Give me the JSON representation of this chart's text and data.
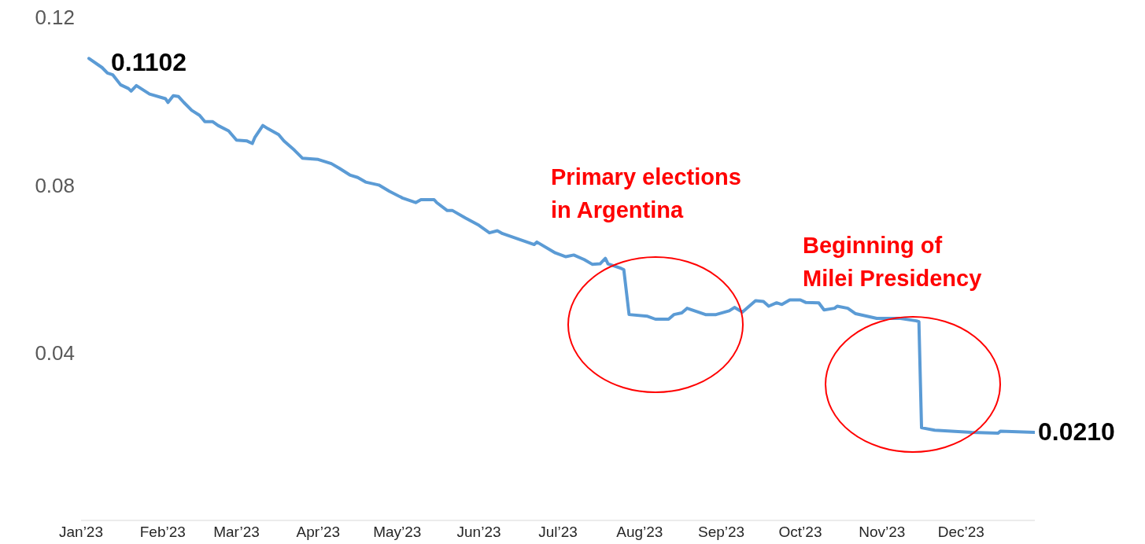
{
  "chart_data": {
    "type": "line",
    "x": [
      "2023-01-04",
      "2023-01-09",
      "2023-01-11",
      "2023-01-13",
      "2023-01-16",
      "2023-01-19",
      "2023-01-20",
      "2023-01-22",
      "2023-01-27",
      "2023-02-02",
      "2023-02-03",
      "2023-02-05",
      "2023-02-07",
      "2023-02-09",
      "2023-02-12",
      "2023-02-15",
      "2023-02-17",
      "2023-02-20",
      "2023-02-22",
      "2023-02-26",
      "2023-03-01",
      "2023-03-05",
      "2023-03-07",
      "2023-03-08",
      "2023-03-11",
      "2023-03-13",
      "2023-03-17",
      "2023-03-19",
      "2023-03-23",
      "2023-03-26",
      "2023-04-01",
      "2023-04-06",
      "2023-04-09",
      "2023-04-13",
      "2023-04-16",
      "2023-04-19",
      "2023-04-24",
      "2023-04-28",
      "2023-05-03",
      "2023-05-08",
      "2023-05-10",
      "2023-05-15",
      "2023-05-16",
      "2023-05-20",
      "2023-05-22",
      "2023-05-27",
      "2023-06-01",
      "2023-06-05",
      "2023-06-08",
      "2023-06-10",
      "2023-06-16",
      "2023-06-22",
      "2023-06-23",
      "2023-06-30",
      "2023-07-04",
      "2023-07-07",
      "2023-07-11",
      "2023-07-14",
      "2023-07-17",
      "2023-07-19",
      "2023-07-20",
      "2023-07-25",
      "2023-07-26",
      "2023-07-28",
      "2023-08-04",
      "2023-08-07",
      "2023-08-12",
      "2023-08-14",
      "2023-08-17",
      "2023-08-19",
      "2023-08-26",
      "2023-08-30",
      "2023-09-04",
      "2023-09-06",
      "2023-09-09",
      "2023-09-14",
      "2023-09-17",
      "2023-09-19",
      "2023-09-22",
      "2023-09-24",
      "2023-09-27",
      "2023-10-01",
      "2023-10-03",
      "2023-10-08",
      "2023-10-10",
      "2023-10-14",
      "2023-10-15",
      "2023-10-19",
      "2023-10-22",
      "2023-10-30",
      "2023-11-08",
      "2023-11-14",
      "2023-11-15",
      "2023-11-16",
      "2023-11-21",
      "2023-12-05",
      "2023-12-15",
      "2023-12-16",
      "2023-12-29"
    ],
    "series": [
      {
        "color": "#5b9bd5",
        "values": [
          0.1102,
          0.108,
          0.1067,
          0.1063,
          0.1039,
          0.103,
          0.1024,
          0.1037,
          0.1017,
          0.1006,
          0.0997,
          0.1013,
          0.1011,
          0.0997,
          0.0978,
          0.0966,
          0.0951,
          0.0951,
          0.0942,
          0.0929,
          0.0907,
          0.0905,
          0.0899,
          0.0914,
          0.0942,
          0.0934,
          0.092,
          0.0905,
          0.0883,
          0.0864,
          0.0861,
          0.0851,
          0.084,
          0.0824,
          0.0818,
          0.0807,
          0.08,
          0.0785,
          0.0769,
          0.0758,
          0.0765,
          0.0765,
          0.0758,
          0.0739,
          0.0739,
          0.0721,
          0.0704,
          0.0686,
          0.0691,
          0.0684,
          0.0671,
          0.0658,
          0.0664,
          0.0638,
          0.0629,
          0.0633,
          0.0622,
          0.0611,
          0.0612,
          0.0625,
          0.0612,
          0.0601,
          0.0598,
          0.0491,
          0.0487,
          0.048,
          0.048,
          0.0491,
          0.0495,
          0.0506,
          0.0491,
          0.0491,
          0.05,
          0.0508,
          0.0497,
          0.0524,
          0.0522,
          0.0511,
          0.0519,
          0.0515,
          0.0526,
          0.0526,
          0.052,
          0.0519,
          0.0502,
          0.0506,
          0.0511,
          0.0506,
          0.0493,
          0.0482,
          0.0482,
          0.0476,
          0.0474,
          0.0221,
          0.0215,
          0.021,
          0.0208,
          0.0213,
          0.021
        ],
        "value_labels": [
          "0.1102",
          null,
          null,
          null,
          null,
          null,
          null,
          null,
          null,
          null,
          null,
          null,
          null,
          null,
          null,
          null,
          null,
          null,
          null,
          null,
          null,
          null,
          null,
          null,
          null,
          null,
          null,
          null,
          null,
          null,
          null,
          null,
          null,
          null,
          null,
          null,
          null,
          null,
          null,
          null,
          null,
          null,
          null,
          null,
          null,
          null,
          null,
          null,
          null,
          null,
          null,
          null,
          null,
          null,
          null,
          null,
          null,
          null,
          null,
          null,
          null,
          null,
          null,
          null,
          null,
          null,
          null,
          null,
          null,
          null,
          null,
          null,
          null,
          null,
          null,
          null,
          null,
          null,
          null,
          null,
          null,
          null,
          null,
          null,
          null,
          null,
          null,
          null,
          null,
          null,
          null,
          null,
          null,
          null,
          null,
          null,
          null,
          null,
          "0.0210"
        ]
      }
    ],
    "xticks": [
      {
        "value": "2023-01-01",
        "label": "Jan’23"
      },
      {
        "value": "2023-02-01",
        "label": "Feb’23"
      },
      {
        "value": "2023-03-01",
        "label": "Mar’23"
      },
      {
        "value": "2023-04-01",
        "label": "Apr’23"
      },
      {
        "value": "2023-05-01",
        "label": "May’23"
      },
      {
        "value": "2023-06-01",
        "label": "Jun’23"
      },
      {
        "value": "2023-07-01",
        "label": "Jul’23"
      },
      {
        "value": "2023-08-01",
        "label": "Aug’23"
      },
      {
        "value": "2023-09-01",
        "label": "Sep’23"
      },
      {
        "value": "2023-10-01",
        "label": "Oct’23"
      },
      {
        "value": "2023-11-01",
        "label": "Nov’23"
      },
      {
        "value": "2023-12-01",
        "label": "Dec’23"
      }
    ],
    "xlim": [
      "2023-01-01",
      "2023-12-29"
    ],
    "ylim": [
      0,
      0.12
    ],
    "yticks": [
      0.04,
      0.08,
      0.12
    ],
    "annotations": [
      "Primary elections\nin Argentina",
      "Beginning of\nMilei Presidency"
    ],
    "marker": "none",
    "line_style": "solid"
  }
}
